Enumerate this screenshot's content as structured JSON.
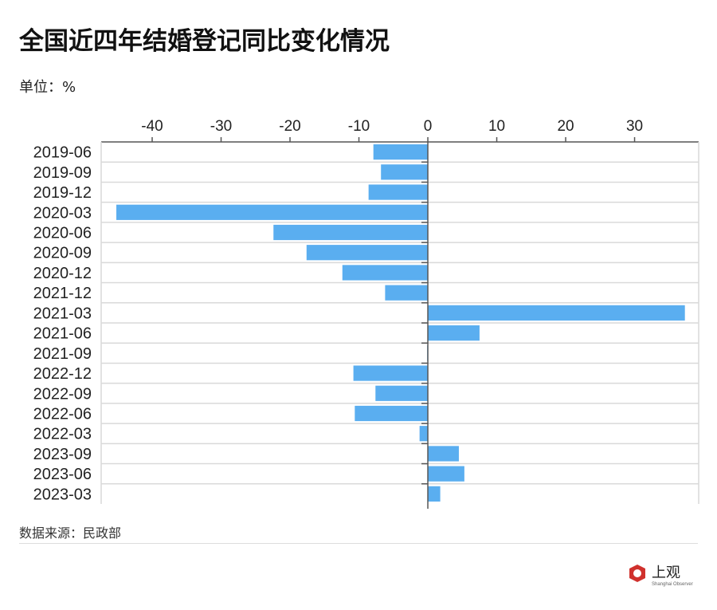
{
  "title": "全国近四年结婚登记同比变化情况",
  "unit": "单位：%",
  "source": "数据来源：民政部",
  "logo": {
    "text": "上观",
    "subtext": "Shanghai Observer"
  },
  "colors": {
    "bar": "#5aaef0",
    "grid": "#d9d9d9",
    "axis": "#555555",
    "logo": "#d0312d"
  },
  "chart_data": {
    "type": "bar",
    "orientation": "horizontal",
    "categories": [
      "2019-06",
      "2019-09",
      "2019-12",
      "2020-03",
      "2020-06",
      "2020-09",
      "2020-12",
      "2021-12",
      "2021-03",
      "2021-06",
      "2021-09",
      "2022-12",
      "2022-09",
      "2022-06",
      "2022-03",
      "2023-09",
      "2023-06",
      "2023-03"
    ],
    "values": [
      -7.9,
      -6.8,
      -8.6,
      -45.2,
      -22.4,
      -17.6,
      -12.4,
      -6.2,
      37.3,
      7.5,
      -0.1,
      -10.8,
      -7.6,
      -10.6,
      -1.2,
      4.5,
      5.3,
      1.8
    ],
    "xticks": [
      -40,
      -30,
      -20,
      -10,
      0,
      10,
      20,
      30
    ],
    "xlim": [
      -47.4,
      39.3
    ],
    "axis_position": "top",
    "grid": true
  }
}
